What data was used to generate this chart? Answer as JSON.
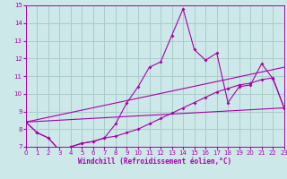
{
  "background_color": "#cce8e8",
  "grid_color": "#aacccc",
  "line_color": "#aa00aa",
  "xlabel": "Windchill (Refroidissement éolien,°C)",
  "xlim": [
    0,
    23
  ],
  "ylim": [
    7,
    15
  ],
  "yticks": [
    7,
    8,
    9,
    10,
    11,
    12,
    13,
    14,
    15
  ],
  "xticks": [
    0,
    1,
    2,
    3,
    4,
    5,
    6,
    7,
    8,
    9,
    10,
    11,
    12,
    13,
    14,
    15,
    16,
    17,
    18,
    19,
    20,
    21,
    22,
    23
  ],
  "series": [
    {
      "x": [
        0,
        1,
        2,
        3,
        4,
        5,
        6,
        7,
        8,
        9,
        10,
        11,
        12,
        13,
        14,
        15,
        16,
        17,
        18,
        19,
        20,
        21,
        22,
        23
      ],
      "y": [
        8.4,
        7.8,
        7.5,
        6.8,
        7.0,
        7.2,
        7.3,
        7.5,
        8.3,
        9.5,
        10.4,
        11.5,
        11.8,
        13.3,
        14.8,
        12.5,
        11.9,
        12.3,
        9.5,
        10.4,
        10.5,
        11.7,
        10.85,
        9.2
      ],
      "marker": true
    },
    {
      "x": [
        0,
        1,
        2,
        3,
        4,
        5,
        6,
        7,
        8,
        9,
        10,
        11,
        12,
        13,
        14,
        15,
        16,
        17,
        18,
        19,
        20,
        21,
        22,
        23
      ],
      "y": [
        8.4,
        7.8,
        7.5,
        6.8,
        7.0,
        7.2,
        7.3,
        7.5,
        7.6,
        7.8,
        8.0,
        8.3,
        8.6,
        8.9,
        9.2,
        9.5,
        9.8,
        10.1,
        10.3,
        10.5,
        10.6,
        10.8,
        10.9,
        9.2
      ],
      "marker": true
    },
    {
      "x": [
        0,
        23
      ],
      "y": [
        8.4,
        11.5
      ],
      "marker": false
    },
    {
      "x": [
        0,
        23
      ],
      "y": [
        8.4,
        9.2
      ],
      "marker": false
    }
  ]
}
